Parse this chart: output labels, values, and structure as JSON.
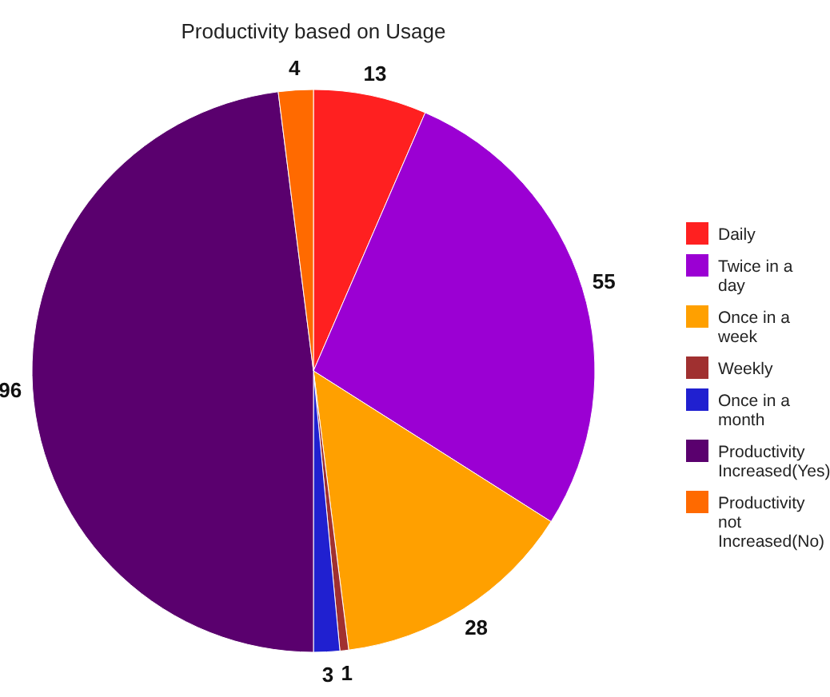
{
  "chart_data": {
    "type": "pie",
    "title": "Productivity based on Usage",
    "categories": [
      "Daily",
      "Twice in a day",
      "Once in a week",
      "Weekly",
      "Once in a month",
      "Productivity Increased(Yes)",
      "Productivity not Increased(No)"
    ],
    "values": [
      13,
      55,
      28,
      1,
      3,
      96,
      4
    ],
    "colors": [
      "#ff2020",
      "#9b00d3",
      "#ffa000",
      "#a03030",
      "#2020d0",
      "#5a006e",
      "#ff6a00"
    ],
    "data_labels": true,
    "legend": "right"
  }
}
